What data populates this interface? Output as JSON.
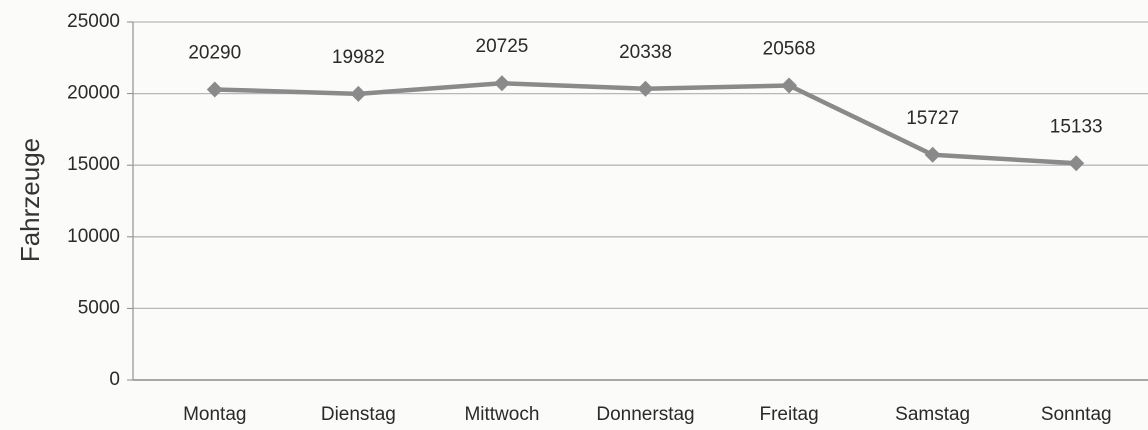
{
  "chart_data": {
    "type": "line",
    "y_label": "Fahrzeuge",
    "categories": [
      "Montag",
      "Dienstag",
      "Mittwoch",
      "Donnerstag",
      "Freitag",
      "Samstag",
      "Sonntag"
    ],
    "series": [
      {
        "name": "Fahrzeuge",
        "color": "#8a8a8a",
        "values": [
          20290,
          19982,
          20725,
          20338,
          20568,
          15727,
          15133
        ]
      }
    ],
    "ylim": [
      0,
      25000
    ],
    "yticks": [
      0,
      5000,
      10000,
      15000,
      20000,
      25000
    ],
    "grid": true
  }
}
